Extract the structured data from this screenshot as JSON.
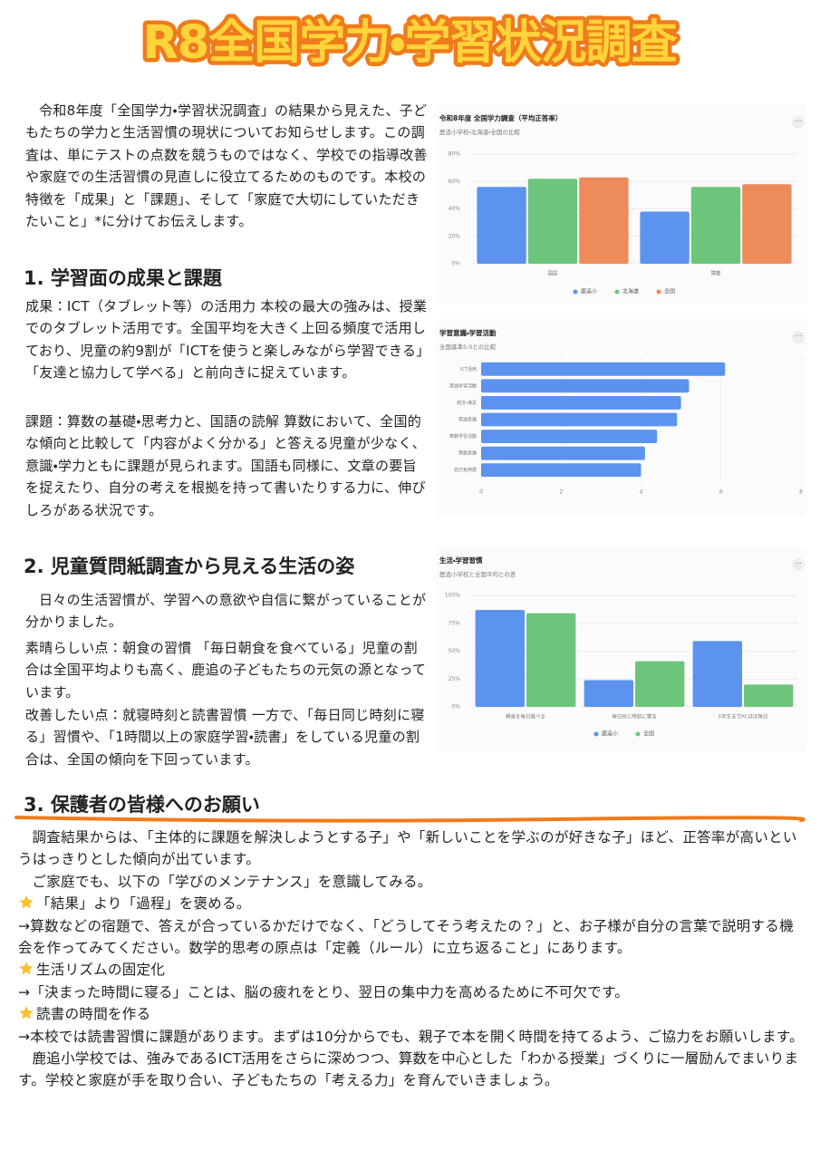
{
  "document": {
    "title": "R8全国学力・学習状況調査",
    "intro": "令和8年度「全国学力・学習状況調査」の結果から見えた、子どもたちの学力と生活習慣の現状についてお知らせします。この調査は、単にテストの点数を競うものではなく、学校での指導改善や家庭での生活習慣の見直しに役立てるためのものです。本校の特徴を「成果」と「課題」、そして「家庭で大切にしていただきたいこと」*に分けてお伝えします。",
    "sections": [
      {
        "heading": "1. 学習面の成果と課題",
        "paragraphs": [
          "成果：ICT（タブレット等）の活用力 本校の最大の強みは、授業でのタブレット活用です。全国平均を大きく上回る頻度で活用しており、児童の約9割が「ICTを使うと楽しみながら学習できる」「友達と協力して学べる」と前向きに捉えています。",
          "課題：算数の基礎・思考力と、国語の読解 算数において、全国的な傾向と比較して「内容がよく分かる」と答える児童が少なく、意識・学力ともに課題が見られます。国語も同様に、文章の要旨を捉えたり、自分の考えを根拠を持って書いたりする力に、伸びしろがある状況です。"
        ]
      },
      {
        "heading": "2. 児童質問紙調査から見える生活の姿",
        "paragraphs": [
          "日々の生活習慣が、学習への意欲や自信に繋がっていることが分かりました。",
          "素晴らしい点：朝食の習慣 「毎日朝食を食べている」児童の割合は全国平均よりも高く、鹿追の子どもたちの元気の源となっています。",
          "改善したい点：就寝時刻と読書習慣 一方で、「毎日同じ時刻に寝る」習慣や、「1時間以上の家庭学習・読書」をしている児童の割合は、全国の傾向を下回っています。"
        ]
      },
      {
        "heading": "3. 保護者の皆様へのお願い",
        "paragraphs": [
          "調査結果からは、「主体的に課題を解決しようとする子」や「新しいことを学ぶのが好きな子」ほど、正答率が高いというはっきりとした傾向が出ています。",
          "ご家庭でも、以下の「学びのメンテナンス」を意識してみる。"
        ],
        "items": [
          {
            "title": "「結果」より「過程」を褒める。",
            "text": "→算数などの宿題で、答えが合っているかだけでなく、「どうしてそう考えたの？」と、お子様が自分の言葉で説明する機会を作ってみてください。数学的思考の原点は「定義（ルール）に立ち返ること」にあります。"
          },
          {
            "title": "生活リズムの固定化",
            "text": "→「決まった時間に寝る」ことは、脳の疲れをとり、翌日の集中力を高めるために不可欠です。"
          },
          {
            "title": "読書の時間を作る",
            "text": "→本校では読書習慣に課題があります。まずは10分からでも、親子で本を開く時間を持てるよう、ご協力をお願いします。"
          }
        ],
        "closing": "鹿追小学校では、強みであるICT活用をさらに深めつつ、算数を中心とした「わかる授業」づくりに一層励んでまいります。学校と家庭が手を取り合い、子どもたちの「考える力」を育んでいきましょう。"
      }
    ]
  },
  "chart_data": [
    {
      "type": "bar",
      "title": "令和8年度 全国学力調査（平均正答率）",
      "subtitle": "鹿追小学校・北海道・全国の比較",
      "categories": [
        "国語",
        "算数"
      ],
      "series": [
        {
          "name": "鹿追小",
          "color": "#5b93ef",
          "values": [
            56,
            38
          ]
        },
        {
          "name": "北海道",
          "color": "#6cc57a",
          "values": [
            62,
            56
          ]
        },
        {
          "name": "全国",
          "color": "#ee8b5b",
          "values": [
            63,
            58
          ]
        }
      ],
      "ylim": [
        0,
        80
      ],
      "yticks": [
        {
          "value": 0,
          "label": "0%"
        },
        {
          "value": 20,
          "label": "20%"
        },
        {
          "value": 40,
          "label": "40%"
        },
        {
          "value": 60,
          "label": "60%"
        },
        {
          "value": 80,
          "label": "80%"
        }
      ],
      "grid": true
    },
    {
      "type": "barh",
      "title": "学習意識・学習活動",
      "subtitle": "全国基準5.0との比較",
      "categories": [
        "ICT活用",
        "英語学習活動",
        "総合・満足",
        "英語意識",
        "算数学習活動",
        "算数意識",
        "自己有用感"
      ],
      "values": [
        6.1,
        5.2,
        5.0,
        4.9,
        4.4,
        4.1,
        4.0
      ],
      "color": "#5b93ef",
      "xlim": [
        0,
        8
      ],
      "xticks": [
        0,
        2,
        4,
        6,
        8
      ],
      "grid": true
    },
    {
      "type": "bar",
      "title": "生活・学習習慣",
      "subtitle": "鹿追小学校と全国平均との差",
      "categories": [
        "朝食を毎日食べる",
        "毎日同じ時刻に寝る",
        "5年生までPCほぼ毎日"
      ],
      "series": [
        {
          "name": "鹿追小",
          "color": "#5b93ef",
          "values": [
            87,
            24,
            59
          ]
        },
        {
          "name": "全国",
          "color": "#6cc57a",
          "values": [
            84,
            41,
            20
          ]
        }
      ],
      "ylim": [
        0,
        100
      ],
      "yticks": [
        {
          "value": 0,
          "label": "0%"
        },
        {
          "value": 25,
          "label": "25%"
        },
        {
          "value": 50,
          "label": "50%"
        },
        {
          "value": 75,
          "label": "75%"
        },
        {
          "value": 100,
          "label": "100%"
        }
      ],
      "grid": true
    }
  ]
}
